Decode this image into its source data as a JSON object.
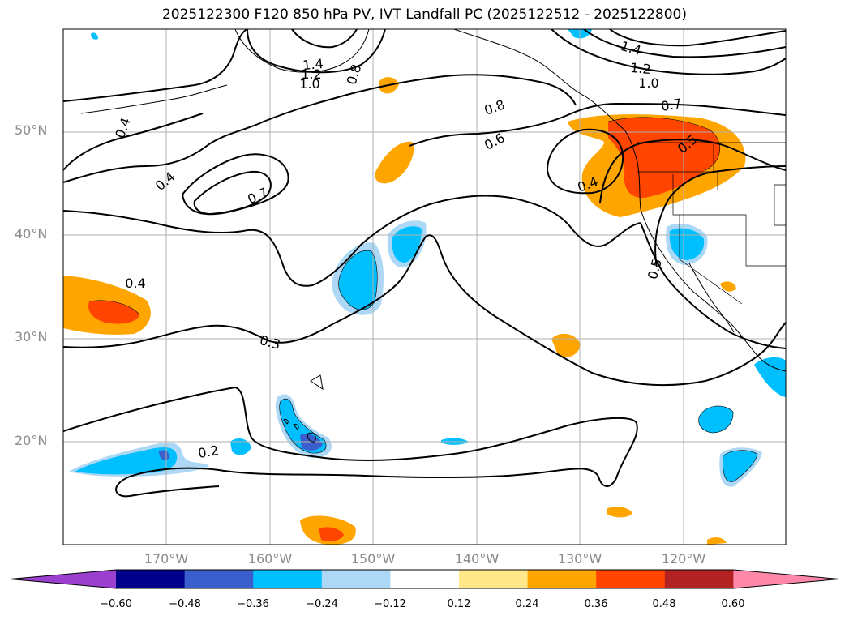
{
  "title": "2025122300 F120 850 hPa PV, IVT Landfall PC (2025122512 - 2025122800)",
  "colors": {
    "ocean": "#ffffff",
    "grid": "#b0b0b0",
    "contour": "#000000",
    "colorbar_bins": [
      "#9b3fcf",
      "#00008b",
      "#3a5fcd",
      "#00bfff",
      "#add8f5",
      "#ffffff",
      "#ffe88a",
      "#ffa500",
      "#ff4500",
      "#b22222",
      "#ff88aa"
    ]
  },
  "map": {
    "lat_ticks": [
      "50°N",
      "40°N",
      "30°N",
      "20°N"
    ],
    "lon_ticks": [
      "170°W",
      "160°W",
      "150°W",
      "140°W",
      "130°W",
      "120°W"
    ]
  },
  "contour_labels": [
    "1.4",
    "1.2",
    "1.0",
    "0.8",
    "1.4",
    "1.2",
    "1.0",
    "0.8",
    "0.7",
    "0.4",
    "0.4",
    "0.7",
    "0.6",
    "0.5",
    "0.4",
    "0.5",
    "0.4",
    "0.3",
    "0.2"
  ],
  "colorbar": {
    "ticks": [
      "−0.60",
      "−0.48",
      "−0.36",
      "−0.24",
      "−0.12",
      "0.12",
      "0.24",
      "0.36",
      "0.48",
      "0.60"
    ]
  }
}
